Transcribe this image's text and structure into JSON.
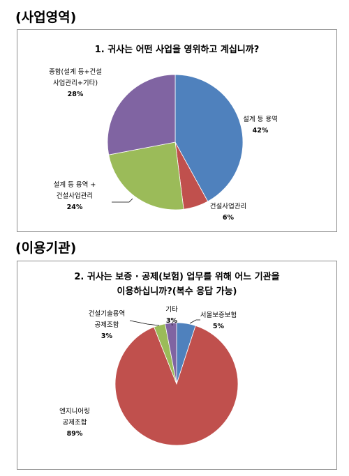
{
  "headings": {
    "section1": "(사업영역)",
    "section2": "(이용기관)"
  },
  "colors": {
    "blue": "#4f81bd",
    "red": "#c0504d",
    "green": "#9bbb59",
    "purple": "#8064a2"
  },
  "chart_data": [
    {
      "type": "pie",
      "title": "1. 귀사는 어떤 사업을 영위하고 계십니까?",
      "slices": [
        {
          "label": [
            "설계 등 용역"
          ],
          "percent_label": "42%",
          "value": 42,
          "color": "#4f81bd"
        },
        {
          "label": [
            "건설사업관리"
          ],
          "percent_label": "6%",
          "value": 6,
          "color": "#c0504d"
        },
        {
          "label": [
            "설계 등 용역 +",
            "건설사업관리"
          ],
          "percent_label": "24%",
          "value": 24,
          "color": "#9bbb59"
        },
        {
          "label": [
            "종합(설계 등+건설",
            "사업관리+기타)"
          ],
          "percent_label": "28%",
          "value": 28,
          "color": "#8064a2"
        }
      ]
    },
    {
      "type": "pie",
      "title": [
        "2. 귀사는 보증 · 공제(보험) 업무를 위해 어느 기관을",
        "이용하십니까?(복수 응답 가능)"
      ],
      "slices": [
        {
          "label": [
            "서울보증보험"
          ],
          "percent_label": "5%",
          "value": 5,
          "color": "#4f81bd"
        },
        {
          "label": [
            "엔지니어링",
            "공제조합"
          ],
          "percent_label": "89%",
          "value": 89,
          "color": "#c0504d"
        },
        {
          "label": [
            "건설기술용역",
            "공제조합"
          ],
          "percent_label": "3%",
          "value": 3,
          "color": "#9bbb59"
        },
        {
          "label": [
            "기타"
          ],
          "percent_label": "3%",
          "value": 3,
          "color": "#8064a2"
        }
      ]
    }
  ]
}
